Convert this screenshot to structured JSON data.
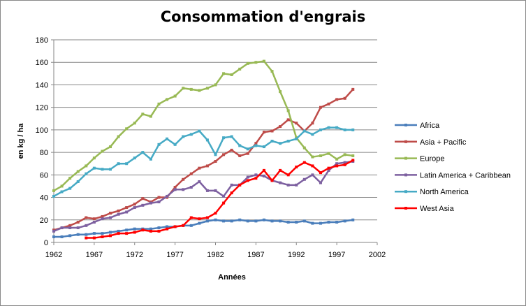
{
  "chart_data": {
    "type": "line",
    "title": "Consommation d'engrais",
    "xlabel": "Années",
    "ylabel": "en kg / ha",
    "xlim": [
      1962,
      2002
    ],
    "ylim": [
      0,
      180
    ],
    "xticks": [
      1962,
      1967,
      1972,
      1977,
      1982,
      1987,
      1992,
      1997,
      2002
    ],
    "yticks": [
      0,
      20,
      40,
      60,
      80,
      100,
      120,
      140,
      160,
      180
    ],
    "grid": "horizontal",
    "legend": "right",
    "series": [
      {
        "name": "Africa",
        "color": "#4a7ebb",
        "start": 1962,
        "values": [
          5,
          5,
          6,
          7,
          7,
          8,
          8,
          9,
          10,
          11,
          12,
          12,
          12,
          13,
          14,
          14,
          15,
          15,
          17,
          19,
          20,
          19,
          19,
          20,
          19,
          19,
          20,
          19,
          19,
          18,
          18,
          19,
          17,
          17,
          18,
          18,
          19,
          20
        ]
      },
      {
        "name": "Asia + Pacific",
        "color": "#be4b48",
        "start": 1962,
        "values": [
          11,
          13,
          15,
          18,
          22,
          21,
          23,
          26,
          28,
          31,
          34,
          39,
          36,
          40,
          40,
          49,
          56,
          61,
          66,
          68,
          72,
          78,
          82,
          77,
          79,
          88,
          98,
          99,
          103,
          109,
          106,
          99,
          106,
          120,
          123,
          127,
          128,
          136
        ]
      },
      {
        "name": "Europe",
        "color": "#98b954",
        "start": 1962,
        "values": [
          46,
          50,
          57,
          63,
          68,
          75,
          81,
          85,
          94,
          101,
          106,
          114,
          112,
          123,
          127,
          130,
          137,
          136,
          135,
          137,
          140,
          150,
          149,
          154,
          159,
          160,
          161,
          152,
          134,
          117,
          93,
          84,
          76,
          77,
          79,
          74,
          78,
          77
        ]
      },
      {
        "name": "Latin America + Caribbean",
        "color": "#7d60a0",
        "start": 1962,
        "values": [
          10,
          13,
          13,
          13,
          15,
          18,
          21,
          22,
          25,
          27,
          31,
          33,
          35,
          36,
          41,
          47,
          47,
          49,
          54,
          46,
          46,
          41,
          51,
          51,
          58,
          60,
          59,
          55,
          53,
          51,
          51,
          56,
          60,
          53,
          64,
          70,
          71,
          72
        ]
      },
      {
        "name": "North America",
        "color": "#46aac5",
        "start": 1962,
        "values": [
          41,
          45,
          48,
          54,
          61,
          66,
          65,
          65,
          70,
          70,
          75,
          80,
          74,
          87,
          92,
          87,
          94,
          96,
          99,
          91,
          78,
          93,
          94,
          86,
          83,
          86,
          85,
          90,
          88,
          90,
          92,
          99,
          96,
          100,
          102,
          102,
          100,
          100
        ]
      },
      {
        "name": "West Asia",
        "color": "#ff0000",
        "start": 1966,
        "values": [
          4,
          4,
          5,
          6,
          8,
          8,
          9,
          11,
          10,
          10,
          12,
          14,
          15,
          22,
          21,
          22,
          26,
          35,
          44,
          51,
          55,
          57,
          64,
          55,
          64,
          60,
          67,
          71,
          68,
          62,
          66,
          68,
          69,
          73
        ]
      }
    ]
  }
}
